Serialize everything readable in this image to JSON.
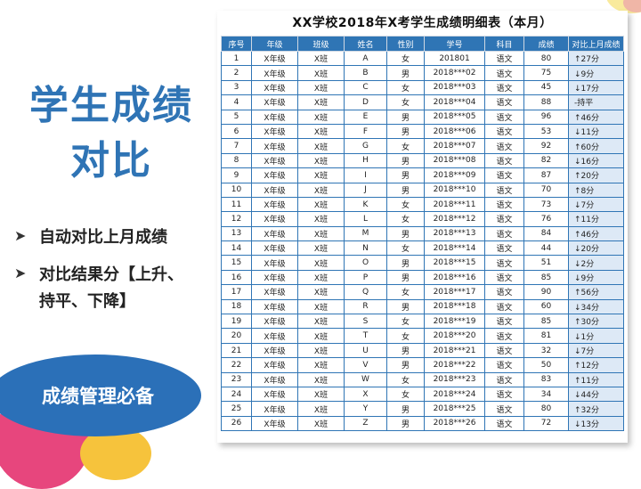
{
  "left": {
    "title_line1": "学生成绩",
    "title_line2": "对比",
    "bullets": [
      {
        "line1": "自动对比上月成绩",
        "line2": ""
      },
      {
        "line1": "对比结果分【上升、",
        "line2": "持平、下降】"
      }
    ],
    "badge": "成绩管理必备"
  },
  "table": {
    "title": "XX学校2018年X考学生成绩明细表（本月）",
    "headers": [
      "序号",
      "年级",
      "班级",
      "姓名",
      "性别",
      "学号",
      "科目",
      "成绩",
      "对比上月成绩"
    ],
    "rows": [
      [
        "1",
        "X年级",
        "X班",
        "A",
        "女",
        "201801",
        "语文",
        "80",
        "↑27分"
      ],
      [
        "2",
        "X年级",
        "X班",
        "B",
        "男",
        "2018***02",
        "语文",
        "75",
        "↓9分"
      ],
      [
        "3",
        "X年级",
        "X班",
        "C",
        "女",
        "2018***03",
        "语文",
        "45",
        "↓17分"
      ],
      [
        "4",
        "X年级",
        "X班",
        "D",
        "女",
        "2018***04",
        "语文",
        "88",
        "-持平"
      ],
      [
        "5",
        "X年级",
        "X班",
        "E",
        "男",
        "2018***05",
        "语文",
        "96",
        "↑46分"
      ],
      [
        "6",
        "X年级",
        "X班",
        "F",
        "男",
        "2018***06",
        "语文",
        "53",
        "↓11分"
      ],
      [
        "7",
        "X年级",
        "X班",
        "G",
        "女",
        "2018***07",
        "语文",
        "92",
        "↑60分"
      ],
      [
        "8",
        "X年级",
        "X班",
        "H",
        "男",
        "2018***08",
        "语文",
        "82",
        "↓16分"
      ],
      [
        "9",
        "X年级",
        "X班",
        "I",
        "男",
        "2018***09",
        "语文",
        "87",
        "↑20分"
      ],
      [
        "10",
        "X年级",
        "X班",
        "J",
        "男",
        "2018***10",
        "语文",
        "70",
        "↑8分"
      ],
      [
        "11",
        "X年级",
        "X班",
        "K",
        "女",
        "2018***11",
        "语文",
        "73",
        "↓7分"
      ],
      [
        "12",
        "X年级",
        "X班",
        "L",
        "女",
        "2018***12",
        "语文",
        "76",
        "↑11分"
      ],
      [
        "13",
        "X年级",
        "X班",
        "M",
        "男",
        "2018***13",
        "语文",
        "84",
        "↑46分"
      ],
      [
        "14",
        "X年级",
        "X班",
        "N",
        "女",
        "2018***14",
        "语文",
        "44",
        "↓20分"
      ],
      [
        "15",
        "X年级",
        "X班",
        "O",
        "男",
        "2018***15",
        "语文",
        "51",
        "↓2分"
      ],
      [
        "16",
        "X年级",
        "X班",
        "P",
        "男",
        "2018***16",
        "语文",
        "85",
        "↓9分"
      ],
      [
        "17",
        "X年级",
        "X班",
        "Q",
        "女",
        "2018***17",
        "语文",
        "90",
        "↑56分"
      ],
      [
        "18",
        "X年级",
        "X班",
        "R",
        "男",
        "2018***18",
        "语文",
        "60",
        "↓34分"
      ],
      [
        "19",
        "X年级",
        "X班",
        "S",
        "女",
        "2018***19",
        "语文",
        "85",
        "↑30分"
      ],
      [
        "20",
        "X年级",
        "X班",
        "T",
        "女",
        "2018***20",
        "语文",
        "81",
        "↓1分"
      ],
      [
        "21",
        "X年级",
        "X班",
        "U",
        "男",
        "2018***21",
        "语文",
        "32",
        "↓7分"
      ],
      [
        "22",
        "X年级",
        "X班",
        "V",
        "男",
        "2018***22",
        "语文",
        "50",
        "↑12分"
      ],
      [
        "23",
        "X年级",
        "X班",
        "W",
        "女",
        "2018***23",
        "语文",
        "83",
        "↑11分"
      ],
      [
        "24",
        "X年级",
        "X班",
        "X",
        "女",
        "2018***24",
        "语文",
        "34",
        "↓44分"
      ],
      [
        "25",
        "X年级",
        "X班",
        "Y",
        "男",
        "2018***25",
        "语文",
        "80",
        "↑32分"
      ],
      [
        "26",
        "X年级",
        "X班",
        "Z",
        "男",
        "2018***26",
        "语文",
        "72",
        "↓13分"
      ]
    ]
  },
  "colors": {
    "accent_blue": "#2f75b5",
    "title_blue": "#2f74b5",
    "compare_cell_bg": "#dde9f6",
    "deco_pink": "#e7467d",
    "deco_yellow": "#f6c33c"
  }
}
